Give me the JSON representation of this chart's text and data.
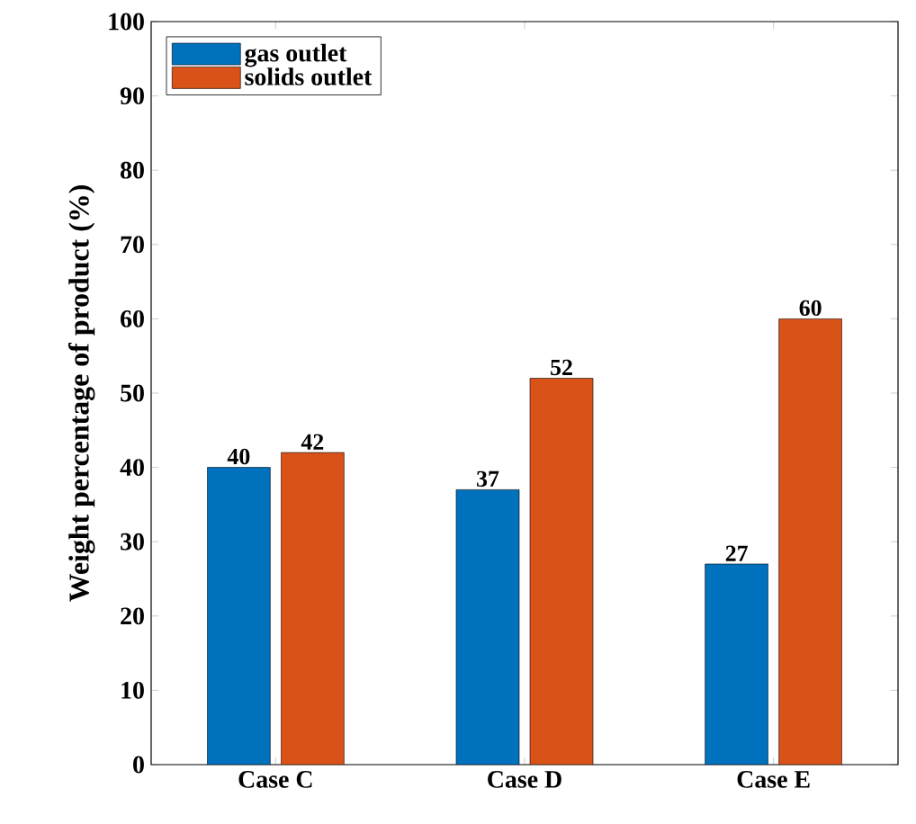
{
  "chart_data": {
    "type": "bar",
    "ylabel": "Weight percentage of product (%)",
    "categories": [
      "Case C",
      "Case D",
      "Case E"
    ],
    "series": [
      {
        "name": "gas outlet",
        "color": "#0072bd",
        "values": [
          40,
          37,
          27
        ]
      },
      {
        "name": "solids outlet",
        "color": "#d95319",
        "values": [
          42,
          52,
          60
        ]
      }
    ],
    "ylim": [
      0,
      100
    ],
    "yticks": [
      0,
      10,
      20,
      30,
      40,
      50,
      60,
      70,
      80,
      90,
      100
    ],
    "data_labels": true,
    "legend": "top left",
    "grid": false
  }
}
